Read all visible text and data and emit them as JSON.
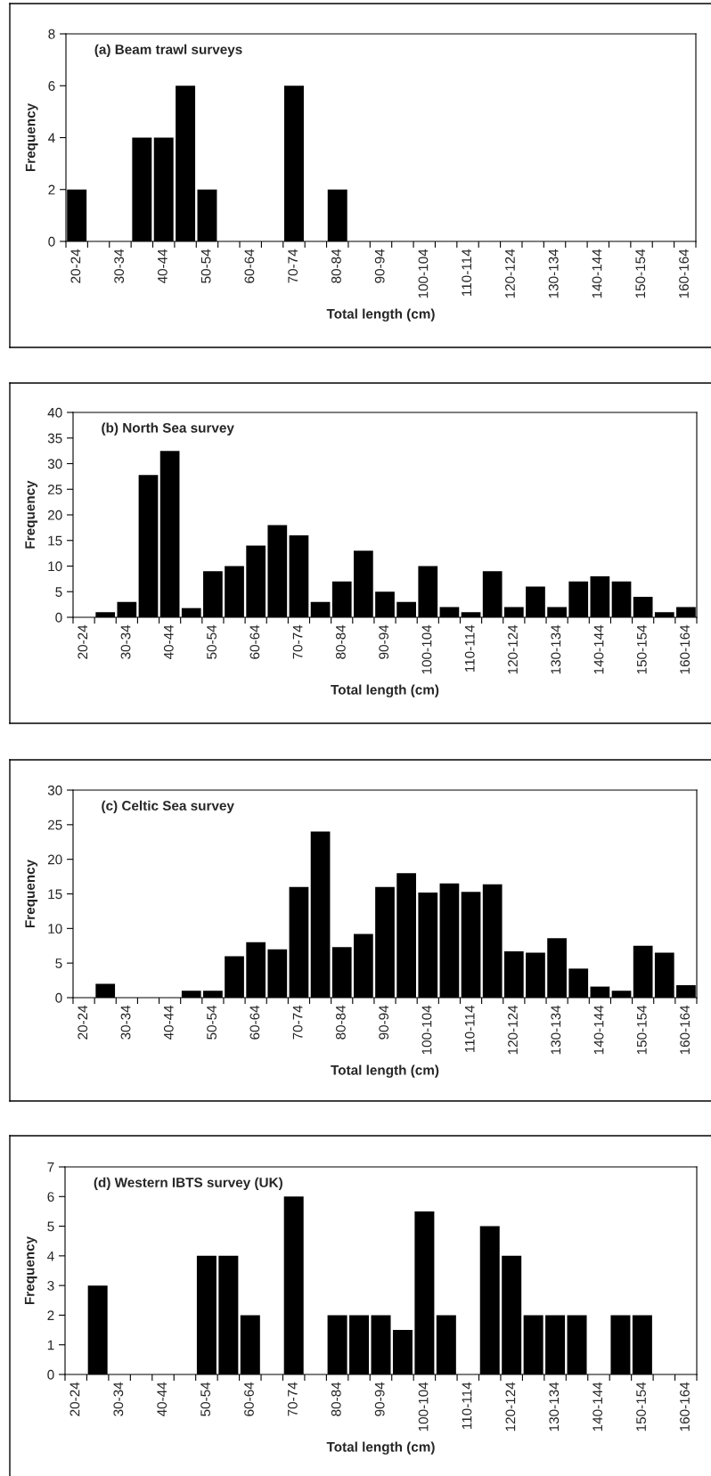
{
  "chart_data": [
    {
      "type": "bar",
      "title": "(a) Beam trawl surveys",
      "xlabel": "Total length (cm)",
      "ylabel": "Frequency",
      "color": "#000000",
      "categories": [
        "20-24",
        null,
        "30-34",
        null,
        "40-44",
        null,
        "50-54",
        null,
        "60-64",
        null,
        "70-74",
        null,
        "80-84",
        null,
        "90-94",
        null,
        "100-104",
        null,
        "110-114",
        null,
        "120-124",
        null,
        "130-134",
        null,
        "140-144",
        null,
        "150-154",
        null,
        "160-164"
      ],
      "values": [
        2,
        0,
        0,
        4,
        4,
        6,
        2,
        0,
        0,
        0,
        6,
        0,
        2,
        0,
        0,
        0,
        0,
        0,
        0,
        0,
        0,
        0,
        0,
        0,
        0,
        0,
        0,
        0,
        0
      ],
      "ylim": [
        0,
        8
      ],
      "yticks": [
        0,
        2,
        4,
        6,
        8
      ],
      "grid": false,
      "legend": false
    },
    {
      "type": "bar",
      "title": "(b) North Sea survey",
      "xlabel": "Total length (cm)",
      "ylabel": "Frequency",
      "color": "#000000",
      "categories": [
        "20-24",
        null,
        "30-34",
        null,
        "40-44",
        null,
        "50-54",
        null,
        "60-64",
        null,
        "70-74",
        null,
        "80-84",
        null,
        "90-94",
        null,
        "100-104",
        null,
        "110-114",
        null,
        "120-124",
        null,
        "130-134",
        null,
        "140-144",
        null,
        "150-154",
        null,
        "160-164"
      ],
      "values": [
        0,
        1,
        3,
        27.8,
        32.5,
        1.8,
        9,
        10,
        14,
        18,
        16,
        3,
        7,
        13,
        5,
        3,
        10,
        2,
        1,
        9,
        2,
        6,
        2,
        7,
        8,
        7,
        4,
        1,
        2
      ],
      "ylim": [
        0,
        40
      ],
      "yticks": [
        0,
        5,
        10,
        15,
        20,
        25,
        30,
        35,
        40
      ],
      "grid": false,
      "legend": false
    },
    {
      "type": "bar",
      "title": "(c) Celtic Sea survey",
      "xlabel": "Total length (cm)",
      "ylabel": "Frequency",
      "color": "#000000",
      "categories": [
        "20-24",
        null,
        "30-34",
        null,
        "40-44",
        null,
        "50-54",
        null,
        "60-64",
        null,
        "70-74",
        null,
        "80-84",
        null,
        "90-94",
        null,
        "100-104",
        null,
        "110-114",
        null,
        "120-124",
        null,
        "130-134",
        null,
        "140-144",
        null,
        "150-154",
        null,
        "160-164"
      ],
      "values": [
        0,
        2,
        0,
        0,
        0,
        1,
        1,
        6,
        8,
        7,
        16,
        24,
        7.3,
        9.2,
        16,
        18,
        15.2,
        16.5,
        15.3,
        16.4,
        6.7,
        6.5,
        8.6,
        4.2,
        1.6,
        1,
        7.5,
        6.5,
        1.8
      ],
      "ylim": [
        0,
        30
      ],
      "yticks": [
        0,
        5,
        10,
        15,
        20,
        25,
        30
      ],
      "grid": false,
      "legend": false
    },
    {
      "type": "bar",
      "title": "(d) Western IBTS survey (UK)",
      "xlabel": "Total length (cm)",
      "ylabel": "Frequency",
      "color": "#000000",
      "categories": [
        "20-24",
        null,
        "30-34",
        null,
        "40-44",
        null,
        "50-54",
        null,
        "60-64",
        null,
        "70-74",
        null,
        "80-84",
        null,
        "90-94",
        null,
        "100-104",
        null,
        "110-114",
        null,
        "120-124",
        null,
        "130-134",
        null,
        "140-144",
        null,
        "150-154",
        null,
        "160-164"
      ],
      "values": [
        0,
        3,
        0,
        0,
        0,
        0,
        4,
        4,
        2,
        0,
        6,
        0,
        2,
        2,
        2,
        1.5,
        5.5,
        2,
        0,
        5,
        4,
        2,
        2,
        2,
        0,
        2,
        2,
        0,
        0
      ],
      "ylim": [
        0,
        7
      ],
      "yticks": [
        0,
        1,
        2,
        3,
        4,
        5,
        6,
        7
      ],
      "grid": false,
      "legend": false
    }
  ]
}
